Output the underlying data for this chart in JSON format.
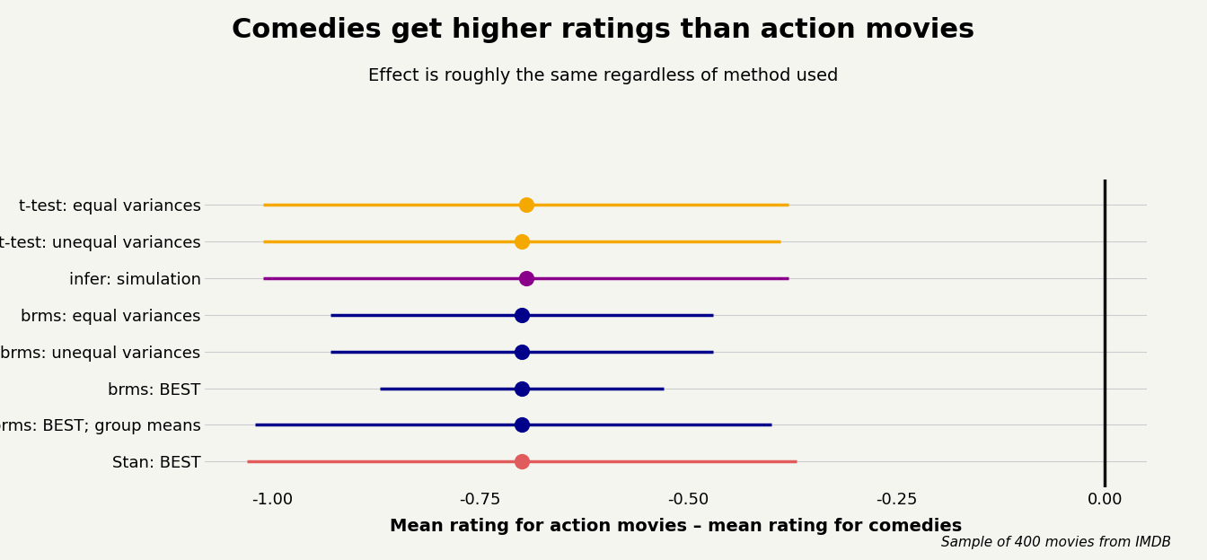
{
  "title": "Comedies get higher ratings than action movies",
  "subtitle": "Effect is roughly the same regardless of method used",
  "xlabel": "Mean rating for action movies – mean rating for comedies",
  "footnote": "Sample of 400 movies from IMDB",
  "xlim": [
    -1.08,
    0.05
  ],
  "xticks": [
    -1.0,
    -0.75,
    -0.5,
    -0.25,
    0.0
  ],
  "xticklabels": [
    "-1.00",
    "-0.75",
    "-0.50",
    "-0.25",
    "0.00"
  ],
  "background_color": "#f5f5f0",
  "methods": [
    "t-test: equal variances",
    "t-test: unequal variances",
    "infer: simulation",
    "brms: equal variances",
    "brms: unequal variances",
    "brms: BEST",
    "brms: BEST; group means",
    "Stan: BEST"
  ],
  "centers": [
    -0.695,
    -0.7,
    -0.695,
    -0.7,
    -0.7,
    -0.7,
    -0.7,
    -0.7
  ],
  "lower": [
    -1.01,
    -1.01,
    -1.01,
    -0.93,
    -0.93,
    -0.87,
    -1.02,
    -1.03
  ],
  "upper": [
    -0.38,
    -0.39,
    -0.38,
    -0.47,
    -0.47,
    -0.53,
    -0.4,
    -0.37
  ],
  "colors": [
    "#f5a800",
    "#f5a800",
    "#8b008b",
    "#00008b",
    "#00008b",
    "#00008b",
    "#00008b",
    "#e05c5c"
  ],
  "line_width": 2.5,
  "dot_size": 130,
  "vline_x": 0.0,
  "vline_color": "#111111",
  "grid_color": "#cccccc",
  "title_fontsize": 22,
  "subtitle_fontsize": 14,
  "xlabel_fontsize": 14,
  "tick_fontsize": 13,
  "label_fontsize": 13,
  "footnote_fontsize": 11
}
